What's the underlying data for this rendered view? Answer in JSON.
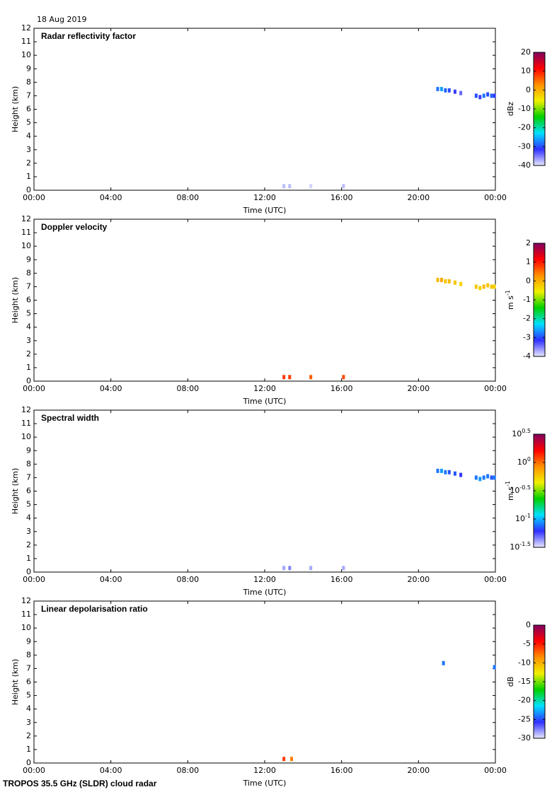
{
  "header": {
    "date": "18 Aug 2019"
  },
  "footer": {
    "text": "TROPOS 35.5 GHz (SLDR) cloud radar"
  },
  "chart_data": [
    {
      "type": "heatmap",
      "title": "Radar reflectivity factor",
      "x_label": "Time (UTC)",
      "y_label": "Height (km)",
      "xlim": [
        0,
        24
      ],
      "xticks": [
        {
          "value": 0,
          "label": "00:00"
        },
        {
          "value": 4,
          "label": "04:00"
        },
        {
          "value": 8,
          "label": "08:00"
        },
        {
          "value": 12,
          "label": "12:00"
        },
        {
          "value": 16,
          "label": "16:00"
        },
        {
          "value": 20,
          "label": "20:00"
        },
        {
          "value": 24,
          "label": "00:00"
        }
      ],
      "ylim": [
        0,
        12
      ],
      "yticks": [
        0,
        1,
        2,
        3,
        4,
        5,
        6,
        7,
        8,
        9,
        10,
        11,
        12
      ],
      "colorbar_label": "dBz",
      "clim": [
        -40,
        20
      ],
      "cticks": [
        20,
        10,
        0,
        -10,
        -20,
        -30,
        -40
      ],
      "log": false,
      "colormap": [
        "#e8e8ff",
        "#3030ff",
        "#00e0ff",
        "#00d000",
        "#f0f000",
        "#ff9000",
        "#ff0000",
        "#800060"
      ],
      "x": [
        21.0,
        21.2,
        21.4,
        21.6,
        21.9,
        22.2,
        23.0,
        23.2,
        23.4,
        23.6,
        23.8,
        23.95,
        13.0,
        13.3,
        14.4,
        16.1
      ],
      "y": [
        7.5,
        7.5,
        7.4,
        7.4,
        7.3,
        7.2,
        7.0,
        6.9,
        7.0,
        7.1,
        7.0,
        7.0,
        0.3,
        0.3,
        0.3,
        0.3
      ],
      "values": [
        -28,
        -26,
        -29,
        -30,
        -32,
        -34,
        -30,
        -32,
        -28,
        -30,
        -29,
        -31,
        -38,
        -38,
        -39,
        -38
      ]
    },
    {
      "type": "heatmap",
      "title": "Doppler velocity",
      "x_label": "Time (UTC)",
      "y_label": "Height (km)",
      "xlim": [
        0,
        24
      ],
      "xticks": [
        {
          "value": 0,
          "label": "00:00"
        },
        {
          "value": 4,
          "label": "04:00"
        },
        {
          "value": 8,
          "label": "08:00"
        },
        {
          "value": 12,
          "label": "12:00"
        },
        {
          "value": 16,
          "label": "16:00"
        },
        {
          "value": 20,
          "label": "20:00"
        },
        {
          "value": 24,
          "label": "00:00"
        }
      ],
      "ylim": [
        0,
        12
      ],
      "yticks": [
        0,
        1,
        2,
        3,
        4,
        5,
        6,
        7,
        8,
        9,
        10,
        11,
        12
      ],
      "colorbar_label": "m s",
      "colorbar_label_sup": "-1",
      "clim": [
        -4,
        2
      ],
      "cticks": [
        2,
        1,
        0,
        -1,
        -2,
        -3,
        -4
      ],
      "log": false,
      "colormap": [
        "#e8e8ff",
        "#3030ff",
        "#00e0ff",
        "#00d000",
        "#f0f000",
        "#ff9000",
        "#ff0000",
        "#800060"
      ],
      "x": [
        21.0,
        21.2,
        21.4,
        21.6,
        21.9,
        22.2,
        23.0,
        23.2,
        23.4,
        23.6,
        23.8,
        23.95,
        13.0,
        13.3,
        14.4,
        16.1
      ],
      "y": [
        7.5,
        7.5,
        7.4,
        7.4,
        7.3,
        7.2,
        7.0,
        6.9,
        7.0,
        7.1,
        7.0,
        7.0,
        0.3,
        0.3,
        0.3,
        0.3
      ],
      "values": [
        -0.1,
        0.1,
        -0.2,
        -0.1,
        -0.2,
        -0.3,
        -0.2,
        -0.3,
        -0.1,
        -0.2,
        -0.2,
        -0.3,
        0.8,
        0.8,
        0.6,
        0.7
      ]
    },
    {
      "type": "heatmap",
      "title": "Spectral width",
      "x_label": "Time (UTC)",
      "y_label": "Height (km)",
      "xlim": [
        0,
        24
      ],
      "xticks": [
        {
          "value": 0,
          "label": "00:00"
        },
        {
          "value": 4,
          "label": "04:00"
        },
        {
          "value": 8,
          "label": "08:00"
        },
        {
          "value": 12,
          "label": "12:00"
        },
        {
          "value": 16,
          "label": "16:00"
        },
        {
          "value": 20,
          "label": "20:00"
        },
        {
          "value": 24,
          "label": "00:00"
        }
      ],
      "ylim": [
        0,
        12
      ],
      "yticks": [
        0,
        1,
        2,
        3,
        4,
        5,
        6,
        7,
        8,
        9,
        10,
        11,
        12
      ],
      "colorbar_label": "m s",
      "colorbar_label_sup": "-1",
      "clim": [
        0.0316,
        3.16
      ],
      "log": true,
      "cticks": [
        {
          "value": 3.16,
          "label": "10",
          "exponent": "0.5"
        },
        {
          "value": 1,
          "label": "10",
          "exponent": "0"
        },
        {
          "value": 0.316,
          "label": "10",
          "exponent": "-0.5"
        },
        {
          "value": 0.1,
          "label": "10",
          "exponent": "-1"
        },
        {
          "value": 0.0316,
          "label": "10",
          "exponent": "-1.5"
        }
      ],
      "colormap": [
        "#e8e8ff",
        "#3030ff",
        "#00e0ff",
        "#00d000",
        "#f0f000",
        "#ff9000",
        "#ff0000",
        "#800060"
      ],
      "x": [
        21.0,
        21.2,
        21.4,
        21.6,
        21.9,
        22.2,
        23.0,
        23.2,
        23.4,
        23.6,
        23.8,
        23.95,
        13.0,
        13.3,
        14.4,
        16.1
      ],
      "y": [
        7.5,
        7.5,
        7.4,
        7.4,
        7.3,
        7.2,
        7.0,
        6.9,
        7.0,
        7.1,
        7.0,
        7.0,
        0.3,
        0.3,
        0.3,
        0.3
      ],
      "values": [
        0.08,
        0.09,
        0.08,
        0.07,
        0.07,
        0.06,
        0.08,
        0.09,
        0.08,
        0.08,
        0.07,
        0.08,
        0.04,
        0.045,
        0.04,
        0.04
      ]
    },
    {
      "type": "heatmap",
      "title": "Linear depolarisation ratio",
      "x_label": "Time (UTC)",
      "y_label": "Height (km)",
      "xlim": [
        0,
        24
      ],
      "xticks": [
        {
          "value": 0,
          "label": "00:00"
        },
        {
          "value": 4,
          "label": "04:00"
        },
        {
          "value": 8,
          "label": "08:00"
        },
        {
          "value": 12,
          "label": "12:00"
        },
        {
          "value": 16,
          "label": "16:00"
        },
        {
          "value": 20,
          "label": "20:00"
        },
        {
          "value": 24,
          "label": "00:00"
        }
      ],
      "ylim": [
        0,
        12
      ],
      "yticks": [
        0,
        1,
        2,
        3,
        4,
        5,
        6,
        7,
        8,
        9,
        10,
        11,
        12
      ],
      "colorbar_label": "dB",
      "clim": [
        -30,
        0
      ],
      "cticks": [
        0,
        -5,
        -10,
        -15,
        -20,
        -25,
        -30
      ],
      "log": false,
      "colormap": [
        "#e8e8ff",
        "#3030ff",
        "#00e0ff",
        "#00d000",
        "#f0f000",
        "#ff9000",
        "#ff0000",
        "#800060"
      ],
      "x": [
        21.3,
        23.95,
        13.0,
        13.4
      ],
      "y": [
        7.4,
        7.1,
        0.3,
        0.3
      ],
      "values": [
        -24,
        -24,
        -6,
        -8
      ]
    }
  ]
}
